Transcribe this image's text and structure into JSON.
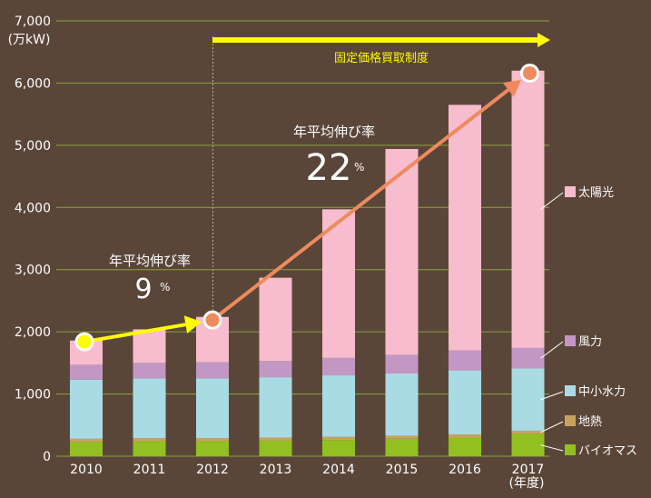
{
  "chart_data": {
    "type": "bar",
    "stacked": true,
    "y_unit_label": "(万kW)",
    "x_unit_label": "(年度)",
    "ylim": [
      0,
      7000
    ],
    "yticks": [
      "0",
      "1,000",
      "2,000",
      "3,000",
      "4,000",
      "5,000",
      "6,000",
      "7,000"
    ],
    "categories": [
      "2010",
      "2011",
      "2012",
      "2013",
      "2014",
      "2015",
      "2016",
      "2017"
    ],
    "series": [
      {
        "name": "バイオマス",
        "color": "#92c020",
        "values": [
          230,
          240,
          240,
          250,
          260,
          280,
          300,
          360
        ]
      },
      {
        "name": "地熱",
        "color": "#c8a35e",
        "values": [
          50,
          50,
          50,
          50,
          50,
          50,
          50,
          50
        ]
      },
      {
        "name": "中小水力",
        "color": "#a9dbe4",
        "values": [
          950,
          960,
          960,
          970,
          990,
          1000,
          1030,
          1000
        ]
      },
      {
        "name": "風力",
        "color": "#c397c3",
        "values": [
          240,
          250,
          260,
          260,
          280,
          300,
          320,
          330
        ]
      },
      {
        "name": "太陽光",
        "color": "#f7bccd",
        "values": [
          390,
          540,
          730,
          1340,
          2390,
          3310,
          3950,
          4460
        ]
      }
    ],
    "annotations": {
      "fit_label": "固定価格買取制度",
      "growth_before": {
        "label": "年平均伸び率",
        "value": "9",
        "unit": "%"
      },
      "growth_after": {
        "label": "年平均伸び率",
        "value": "22",
        "unit": "%"
      }
    },
    "grid": true,
    "legend": "right",
    "colors": {
      "background": "#5a4639",
      "grid": "#8aa33a",
      "fit_arrow": "#fffb00",
      "growth_arrow_before": "#fffb00",
      "growth_arrow_after": "#ee8a5e"
    }
  }
}
